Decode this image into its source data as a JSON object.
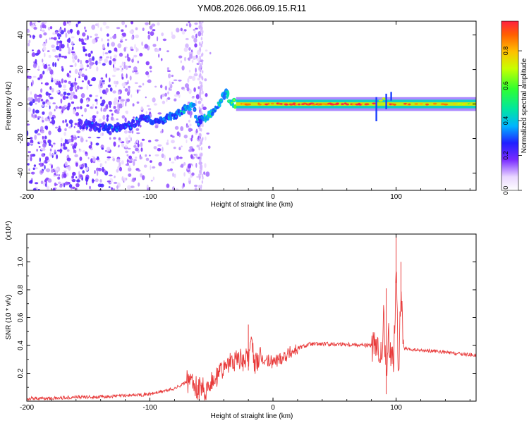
{
  "title": "YM08.2026.066.09.15.R11",
  "chart_data": [
    {
      "type": "heatmap",
      "xlabel": "Height of straight line (km)",
      "ylabel": "Frequency (Hz)",
      "xlim": [
        -200,
        165
      ],
      "ylim": [
        -50,
        48
      ],
      "x_ticks": [
        -200,
        -100,
        0,
        100
      ],
      "y_ticks": [
        -40,
        -20,
        0,
        20,
        40
      ],
      "colorbar": {
        "label": "Normalized spectral amplitude",
        "range": [
          0.0,
          0.97
        ],
        "ticks": [
          0.0,
          0.2,
          0.4,
          0.6,
          0.8
        ]
      },
      "ridge": {
        "x": [
          -155,
          -145,
          -130,
          -115,
          -105,
          -95,
          -85,
          -75,
          -65,
          -62,
          -55,
          -45,
          -38,
          -35,
          -30,
          -20,
          0,
          20,
          50,
          80,
          85,
          90,
          95,
          100,
          120,
          140,
          165
        ],
        "freq": [
          -12,
          -13,
          -14,
          -12,
          -8,
          -10,
          -8,
          -5,
          0,
          -11,
          -8,
          -2,
          8,
          2,
          0,
          0,
          0,
          0,
          0,
          0,
          1,
          3,
          0,
          0,
          0,
          0,
          0
        ],
        "amplitude": [
          0.25,
          0.3,
          0.35,
          0.3,
          0.35,
          0.35,
          0.4,
          0.4,
          0.45,
          0.35,
          0.45,
          0.45,
          0.45,
          0.55,
          0.7,
          0.75,
          0.85,
          0.9,
          0.95,
          0.9,
          0.85,
          0.6,
          0.9,
          0.95,
          0.8,
          0.75,
          0.6
        ]
      }
    },
    {
      "type": "line",
      "xlabel": "Height of straight line (km)",
      "ylabel": "SNR (10 * v/v)",
      "y_scale_label": "(x10⁴)",
      "xlim": [
        -200,
        165
      ],
      "ylim": [
        0,
        1.2
      ],
      "x_ticks": [
        -200,
        -100,
        0,
        100
      ],
      "y_ticks": [
        0.2,
        0.4,
        0.6,
        0.8,
        1.0
      ],
      "series": [
        {
          "name": "SNR",
          "color": "#e83a3a",
          "x": [
            -200,
            -180,
            -160,
            -140,
            -120,
            -100,
            -90,
            -80,
            -70,
            -65,
            -60,
            -55,
            -50,
            -40,
            -35,
            -30,
            -25,
            -20,
            -18,
            -15,
            -10,
            0,
            10,
            20,
            30,
            40,
            60,
            80,
            85,
            88,
            90,
            92,
            94,
            96,
            98,
            100,
            102,
            104,
            106,
            110,
            130,
            150,
            165
          ],
          "y": [
            0.02,
            0.02,
            0.03,
            0.03,
            0.04,
            0.05,
            0.07,
            0.09,
            0.14,
            0.12,
            0.1,
            0.08,
            0.15,
            0.22,
            0.28,
            0.3,
            0.27,
            0.32,
            0.45,
            0.26,
            0.3,
            0.28,
            0.33,
            0.38,
            0.41,
            0.41,
            0.41,
            0.4,
            0.36,
            0.3,
            0.6,
            0.15,
            0.45,
            0.35,
            0.3,
            0.95,
            0.2,
            0.8,
            0.38,
            0.37,
            0.36,
            0.34,
            0.33
          ]
        }
      ],
      "spikes": [
        {
          "x": -20,
          "y": 0.55
        },
        {
          "x": 92,
          "y": 0.81
        },
        {
          "x": 100,
          "y": 1.19
        },
        {
          "x": 104,
          "y": 1.0
        }
      ]
    }
  ]
}
